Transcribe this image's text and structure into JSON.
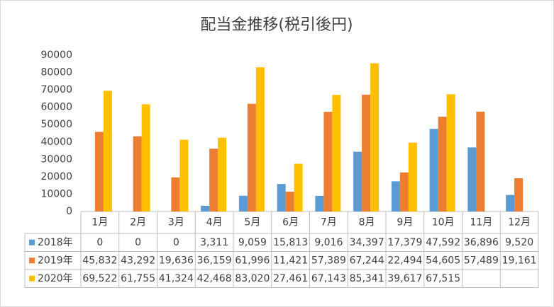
{
  "chart_data": {
    "type": "bar",
    "title": "配当金推移(税引後円)",
    "categories": [
      "1月",
      "2月",
      "3月",
      "4月",
      "5月",
      "6月",
      "7月",
      "8月",
      "9月",
      "10月",
      "11月",
      "12月"
    ],
    "series": [
      {
        "name": "2018年",
        "color": "#5b9bd5",
        "values": [
          0,
          0,
          0,
          3311,
          9059,
          15813,
          9016,
          34397,
          17379,
          47592,
          36896,
          9520
        ],
        "value_labels": [
          "0",
          "0",
          "0",
          "3,311",
          "9,059",
          "15,813",
          "9,016",
          "34,397",
          "17,379",
          "47,592",
          "36,896",
          "9,520"
        ]
      },
      {
        "name": "2019年",
        "color": "#ed7d31",
        "values": [
          45832,
          43292,
          19636,
          36159,
          61996,
          11421,
          57389,
          67244,
          22494,
          54605,
          57489,
          19161
        ],
        "value_labels": [
          "45,832",
          "43,292",
          "19,636",
          "36,159",
          "61,996",
          "11,421",
          "57,389",
          "67,244",
          "22,494",
          "54,605",
          "57,489",
          "19,161"
        ]
      },
      {
        "name": "2020年",
        "color": "#ffc000",
        "values": [
          69522,
          61755,
          41324,
          42468,
          83020,
          27461,
          67143,
          85341,
          39617,
          67515,
          null,
          null
        ],
        "value_labels": [
          "69,522",
          "61,755",
          "41,324",
          "42,468",
          "83,020",
          "27,461",
          "67,143",
          "85,341",
          "39,617",
          "67,515",
          null,
          null
        ]
      }
    ],
    "ylim": [
      0,
      90000
    ],
    "yticks": [
      0,
      10000,
      20000,
      30000,
      40000,
      50000,
      60000,
      70000,
      80000,
      90000
    ],
    "grid": false
  }
}
